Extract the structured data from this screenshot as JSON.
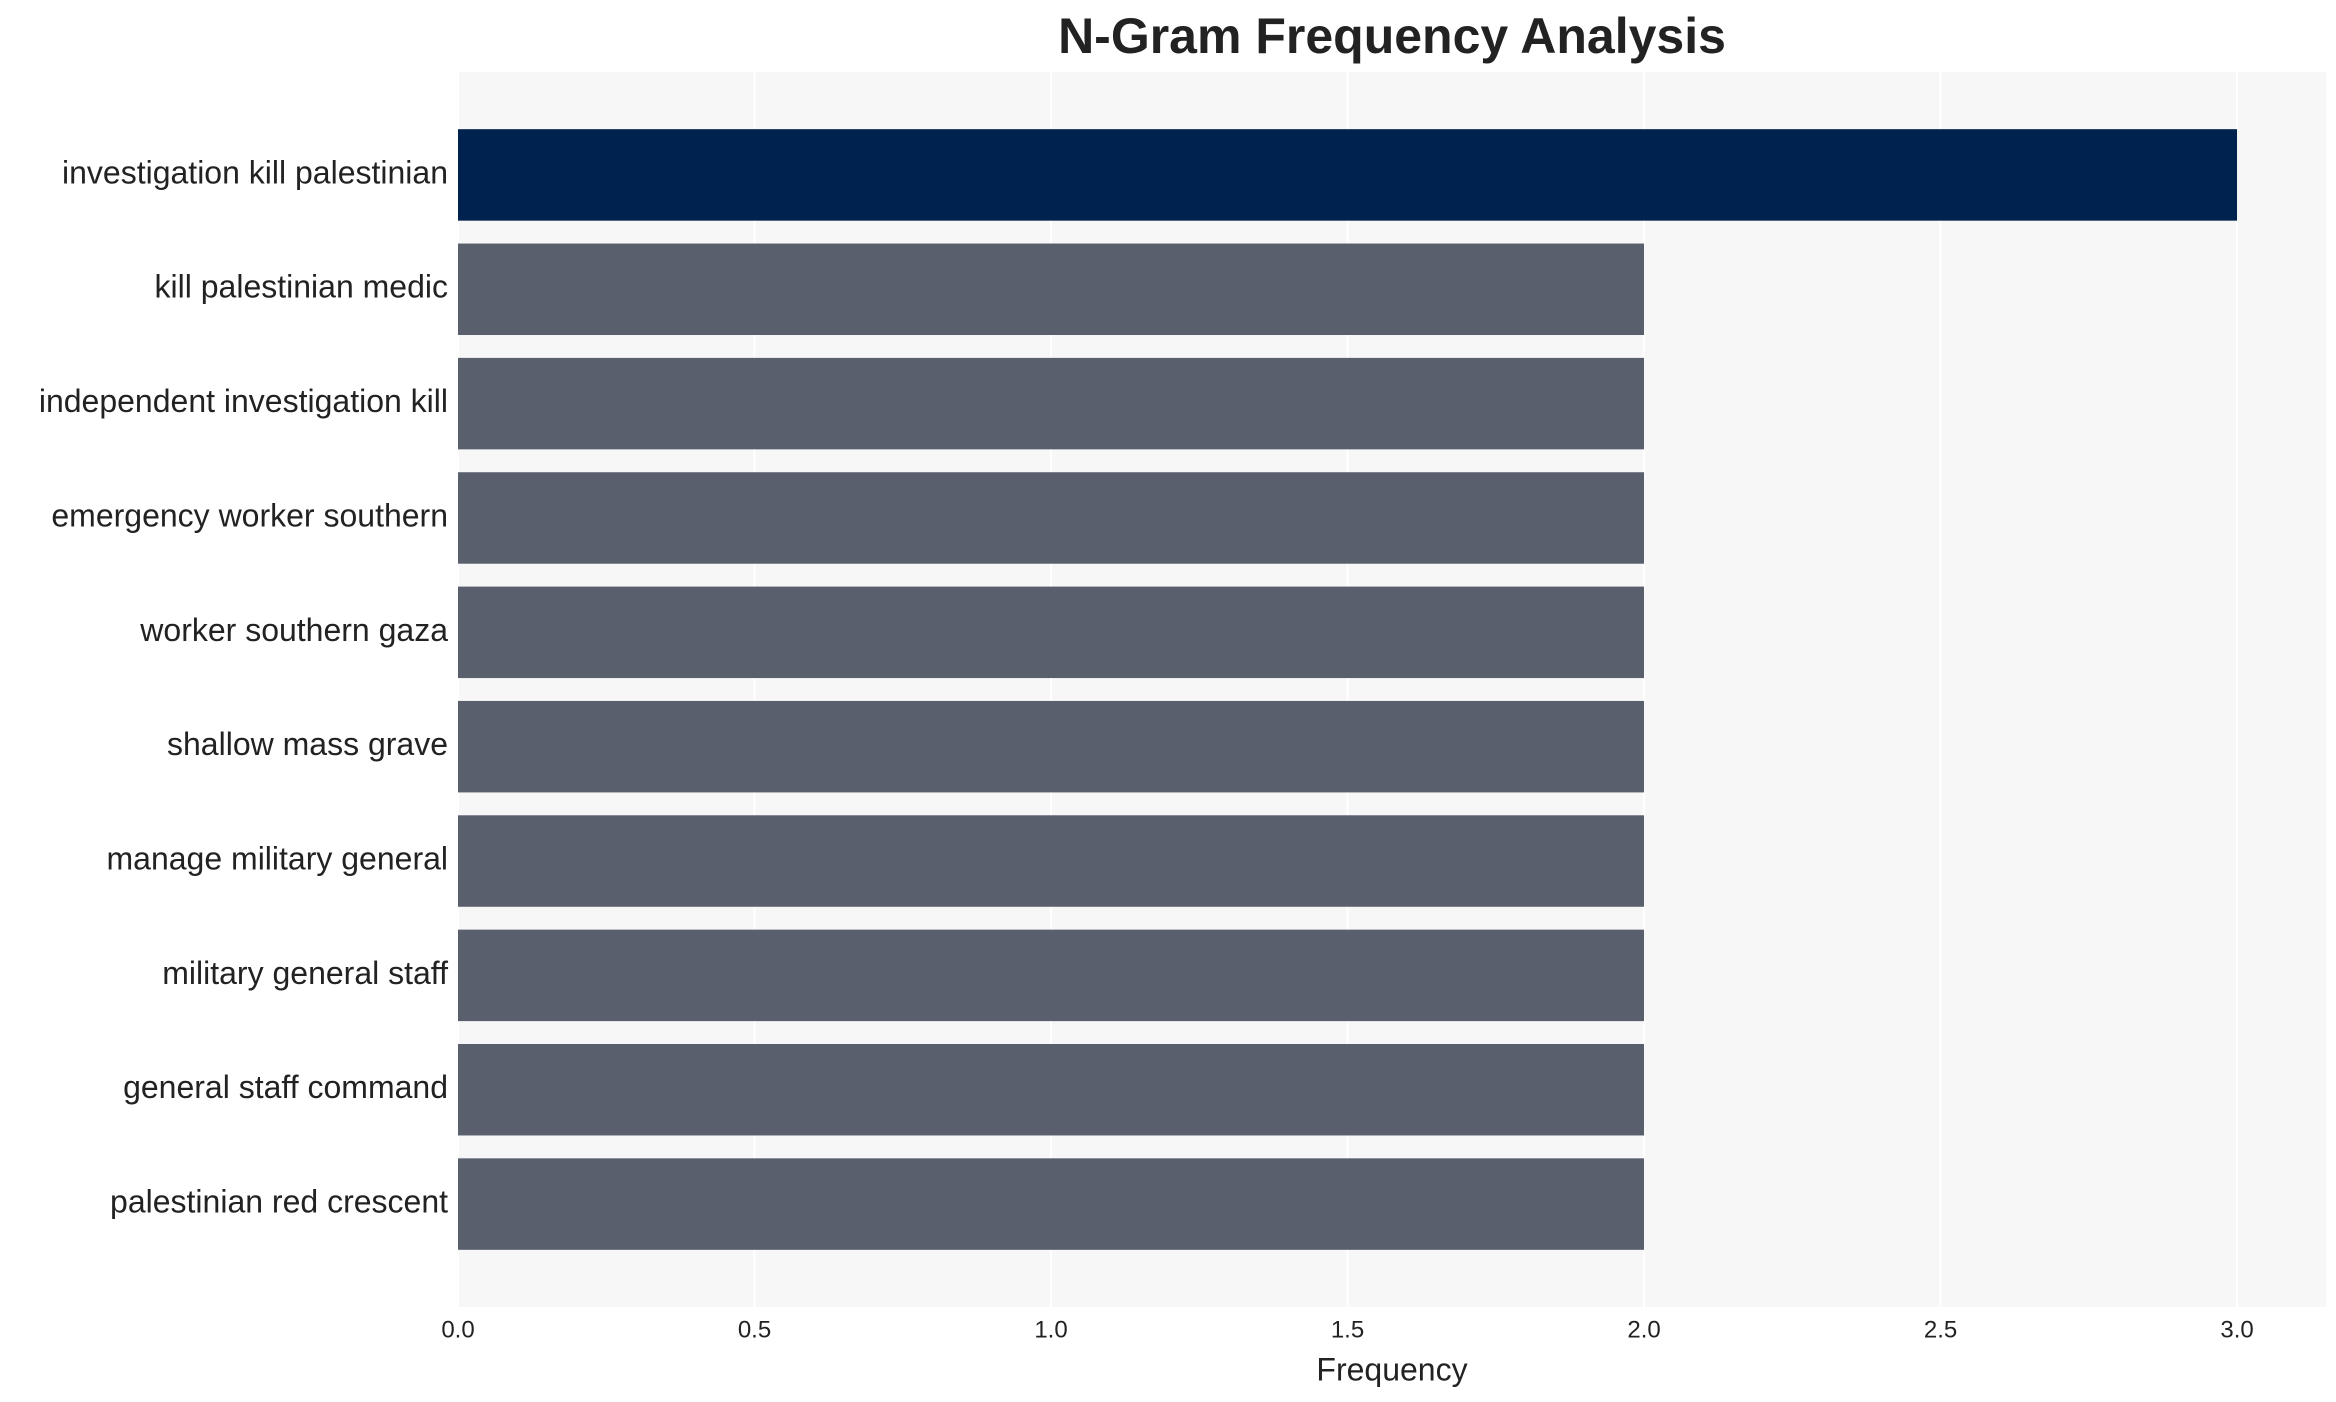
{
  "chart_data": {
    "type": "barh",
    "title": "N-Gram Frequency Analysis",
    "xlabel": "Frequency",
    "categories": [
      "investigation kill palestinian",
      "kill palestinian medic",
      "independent investigation kill",
      "emergency worker southern",
      "worker southern gaza",
      "shallow mass grave",
      "manage military general",
      "military general staff",
      "general staff command",
      "palestinian red crescent"
    ],
    "values": [
      3,
      2,
      2,
      2,
      2,
      2,
      2,
      2,
      2,
      2
    ],
    "colors": [
      "#00224e",
      "#5a5f6e",
      "#5a5f6e",
      "#5a5f6e",
      "#5a5f6e",
      "#5a5f6e",
      "#5a5f6e",
      "#5a5f6e",
      "#5a5f6e",
      "#5a5f6e"
    ],
    "xlim": [
      0,
      3.15
    ],
    "xticks": [
      {
        "value": 0,
        "label": "0.0"
      },
      {
        "value": 0.5,
        "label": "0.5"
      },
      {
        "value": 1,
        "label": "1.0"
      },
      {
        "value": 1.5,
        "label": "1.5"
      },
      {
        "value": 2,
        "label": "2.0"
      },
      {
        "value": 2.5,
        "label": "2.5"
      },
      {
        "value": 3,
        "label": "3.0"
      }
    ],
    "grid": true
  }
}
